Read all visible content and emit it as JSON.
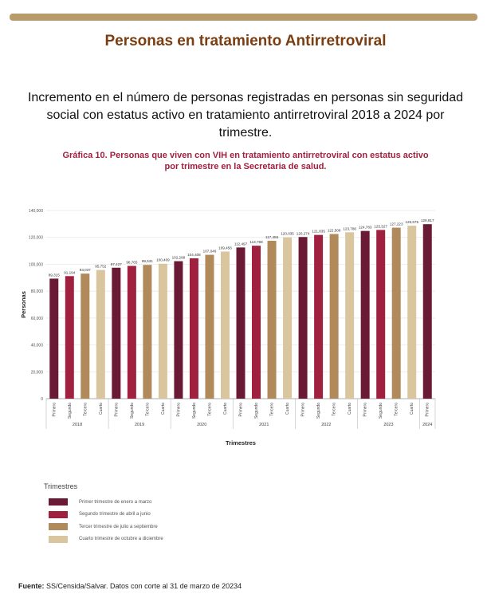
{
  "header": {
    "title": "Personas en tratamiento Antirretroviral",
    "subtitle": "Incremento en el número de personas registradas en personas sin seguridad social con estatus activo en tratamiento antirretroviral 2018 a 2024 por trimestre.",
    "graph_title_line1": "Gráfica 10. Personas que viven  con VIH en tratamiento antirretroviral con estatus activo",
    "graph_title_line2": "por trimestre en la Secretaria de salud."
  },
  "colors": {
    "topbar": "#b99b6b",
    "title": "#7a3e12",
    "graph_title": "#a0203f",
    "q1": "#6b1a35",
    "q2": "#a0203f",
    "q3": "#b08a5a",
    "q4": "#d9c59e"
  },
  "chart_data": {
    "type": "bar",
    "ylabel": "Personas",
    "xlabel": "Trimestres",
    "ylim": [
      0,
      140000
    ],
    "yticks": [
      "0",
      "20,000",
      "40,000",
      "60,000",
      "80,000",
      "100,000",
      "120,000",
      "140,000"
    ],
    "grid": true,
    "legend_position": "bottom-left",
    "categories": [
      "Primero",
      "Segundo",
      "Tercero",
      "Cuarto",
      "Primero",
      "Segundo",
      "Tercero",
      "Cuarto",
      "Primero",
      "Segundo",
      "Tercero",
      "Cuarto",
      "Primero",
      "Segundo",
      "Tercero",
      "Cuarto",
      "Primero",
      "Segundo",
      "Tercero",
      "Cuarto",
      "Primero",
      "Segundo",
      "Tercero",
      "Cuarto",
      "Primero"
    ],
    "quarter_index": [
      0,
      1,
      2,
      3,
      0,
      1,
      2,
      3,
      0,
      1,
      2,
      3,
      0,
      1,
      2,
      3,
      0,
      1,
      2,
      3,
      0,
      1,
      2,
      3,
      0
    ],
    "values": [
      89315,
      91194,
      93037,
      95752,
      97427,
      98765,
      99531,
      100409,
      102288,
      104408,
      107046,
      109456,
      112497,
      113788,
      117455,
      120035,
      120274,
      121835,
      122508,
      123786,
      124783,
      125527,
      127223,
      128675,
      129817
    ],
    "value_labels": [
      "89,315",
      "91,194",
      "93,037",
      "95,752",
      "97,427",
      "98,765",
      "99,531",
      "100,409",
      "102,288",
      "104,408",
      "107,046",
      "109,456",
      "112,497",
      "113,788",
      "117,455",
      "120,035",
      "120,274",
      "121,835",
      "122,508",
      "123,786",
      "124,783",
      "125,527",
      "127,223",
      "128,675",
      "129,817"
    ],
    "years": [
      {
        "label": "2018",
        "start": 0,
        "count": 4
      },
      {
        "label": "2019",
        "start": 4,
        "count": 4
      },
      {
        "label": "2020",
        "start": 8,
        "count": 4
      },
      {
        "label": "2021",
        "start": 12,
        "count": 4
      },
      {
        "label": "2022",
        "start": 16,
        "count": 4
      },
      {
        "label": "2023",
        "start": 20,
        "count": 4
      },
      {
        "label": "2024",
        "start": 24,
        "count": 1
      }
    ]
  },
  "legend": {
    "title": "Trimestres",
    "items": [
      {
        "label": "Primer trimestre de enero a marzo",
        "color": "#6b1a35"
      },
      {
        "label": "Segundo trimestre de abril a junio",
        "color": "#a0203f"
      },
      {
        "label": "Tercer trimestre de julio a septiembre",
        "color": "#b08a5a"
      },
      {
        "label": "Cuarto trimestre de octubre a diciembre",
        "color": "#d9c59e"
      }
    ]
  },
  "footer": {
    "source_label": "Fuente:",
    "source_text": " SS/Censida/Salvar. Datos con corte al 31 de marzo de 20234"
  }
}
